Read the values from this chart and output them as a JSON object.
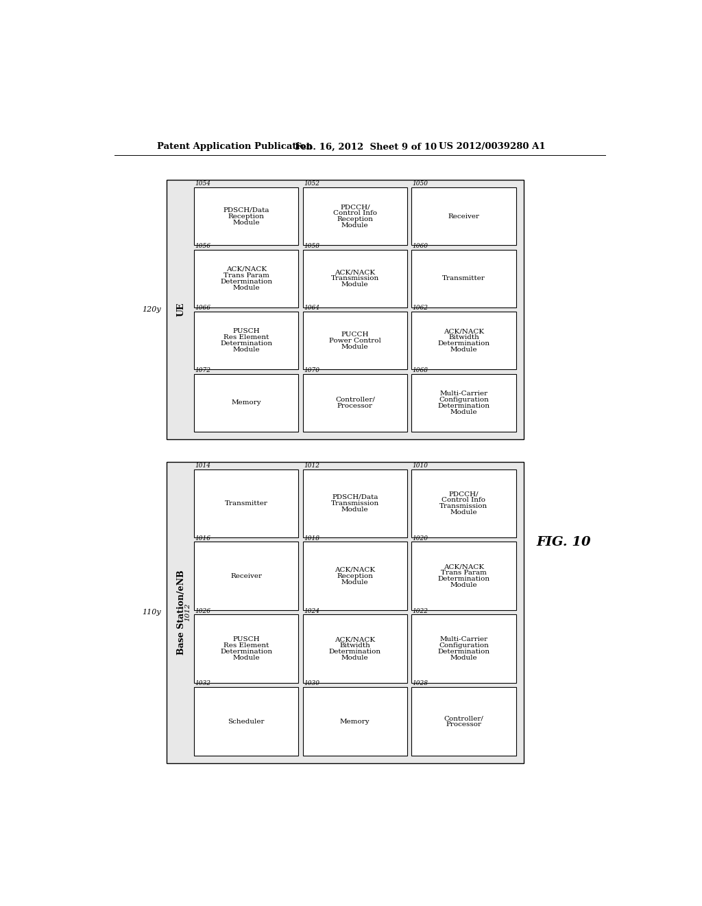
{
  "header_left": "Patent Application Publication",
  "header_mid": "Feb. 16, 2012  Sheet 9 of 10",
  "header_right": "US 2012/0039280 A1",
  "fig_label": "FIG. 10",
  "bg_color": "#ffffff",
  "diagram1": {
    "outer_label": "120y",
    "inner_label": "UE",
    "grid": [
      [
        {
          "id": "1054",
          "lines": [
            "PDSCH/Data",
            "Reception",
            "Module"
          ]
        },
        {
          "id": "1056",
          "lines": [
            "ACK/NACK",
            "Trans Param",
            "Determination",
            "Module"
          ]
        },
        {
          "id": "1066",
          "lines": [
            "PUSCH",
            "Res Element",
            "Determination",
            "Module"
          ]
        },
        {
          "id": "1072",
          "lines": [
            "Memory"
          ]
        }
      ],
      [
        {
          "id": "1052",
          "lines": [
            "PDCCH/",
            "Control Info",
            "Reception",
            "Module"
          ]
        },
        {
          "id": "1058",
          "lines": [
            "ACK/NACK",
            "Transmission",
            "Module"
          ]
        },
        {
          "id": "1064",
          "lines": [
            "PUCCH",
            "Power Control",
            "Module"
          ]
        },
        {
          "id": "1070",
          "lines": [
            "Controller/",
            "Processor"
          ]
        }
      ],
      [
        {
          "id": "1050",
          "lines": [
            "Receiver"
          ]
        },
        {
          "id": "1060",
          "lines": [
            "Transmitter"
          ]
        },
        {
          "id": "1062",
          "lines": [
            "ACK/NACK",
            "Bitwidth",
            "Determination",
            "Module"
          ]
        },
        {
          "id": "1068",
          "lines": [
            "Multi-Carrier",
            "Configuration",
            "Determination",
            "Module"
          ]
        }
      ]
    ]
  },
  "diagram2": {
    "outer_label": "110y",
    "inner_label": "Base Station/eNB",
    "inner_sublabel": "1012",
    "grid": [
      [
        {
          "id": "1014",
          "lines": [
            "Transmitter"
          ]
        },
        {
          "id": "1016",
          "lines": [
            "Receiver"
          ]
        },
        {
          "id": "1026",
          "lines": [
            "PUSCH",
            "Res Element",
            "Determination",
            "Module"
          ]
        },
        {
          "id": "1032",
          "lines": [
            "Scheduler"
          ]
        }
      ],
      [
        {
          "id": "1012",
          "lines": [
            "PDSCH/Data",
            "Transmission",
            "Module"
          ]
        },
        {
          "id": "1018",
          "lines": [
            "ACK/NACK",
            "Reception",
            "Module"
          ]
        },
        {
          "id": "1024",
          "lines": [
            "ACK/NACK",
            "Bitwidth",
            "Determination",
            "Module"
          ]
        },
        {
          "id": "1030",
          "lines": [
            "Memory"
          ]
        }
      ],
      [
        {
          "id": "1010",
          "lines": [
            "PDCCH/",
            "Control Info",
            "Transmission",
            "Module"
          ]
        },
        {
          "id": "1020",
          "lines": [
            "ACK/NACK",
            "Trans Param",
            "Determination",
            "Module"
          ]
        },
        {
          "id": "1022",
          "lines": [
            "Multi-Carrier",
            "Configuration",
            "Determination",
            "Module"
          ]
        },
        {
          "id": "1028",
          "lines": [
            "Controller/",
            "Processor"
          ]
        }
      ]
    ]
  }
}
